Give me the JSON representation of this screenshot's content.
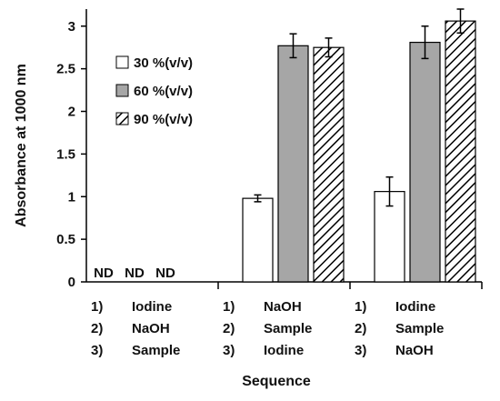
{
  "chart_data": {
    "type": "bar",
    "xlabel": "Sequence",
    "ylabel": "Absorbance at 1000 nm",
    "ylim": [
      0,
      3.2
    ],
    "yticks": [
      "0",
      "0.5",
      "1",
      "1.5",
      "2",
      "2.5",
      "3"
    ],
    "grid": false,
    "legend_position": "top-left",
    "groups": [
      {
        "steps": [
          {
            "num": "1)",
            "text": "Iodine"
          },
          {
            "num": "2)",
            "text": "NaOH"
          },
          {
            "num": "3)",
            "text": "Sample"
          }
        ],
        "annotations": [
          "ND",
          "ND",
          "ND"
        ]
      },
      {
        "steps": [
          {
            "num": "1)",
            "text": "NaOH"
          },
          {
            "num": "2)",
            "text": "Sample"
          },
          {
            "num": "3)",
            "text": "Iodine"
          }
        ],
        "annotations": []
      },
      {
        "steps": [
          {
            "num": "1)",
            "text": "Iodine"
          },
          {
            "num": "2)",
            "text": "Sample"
          },
          {
            "num": "3)",
            "text": "NaOH"
          }
        ],
        "annotations": []
      }
    ],
    "series": [
      {
        "name": "30 %(v/v)",
        "fill": "#ffffff",
        "pattern": "none",
        "values": [
          null,
          0.98,
          1.06
        ],
        "errors": [
          null,
          0.04,
          0.17
        ]
      },
      {
        "name": "60 %(v/v)",
        "fill": "#a6a6a6",
        "pattern": "none",
        "values": [
          null,
          2.77,
          2.81
        ],
        "errors": [
          null,
          0.14,
          0.19
        ]
      },
      {
        "name": "90 %(v/v)",
        "fill": "#ffffff",
        "pattern": "diagonal",
        "values": [
          null,
          2.75,
          3.06
        ],
        "errors": [
          null,
          0.11,
          0.14
        ]
      }
    ]
  }
}
